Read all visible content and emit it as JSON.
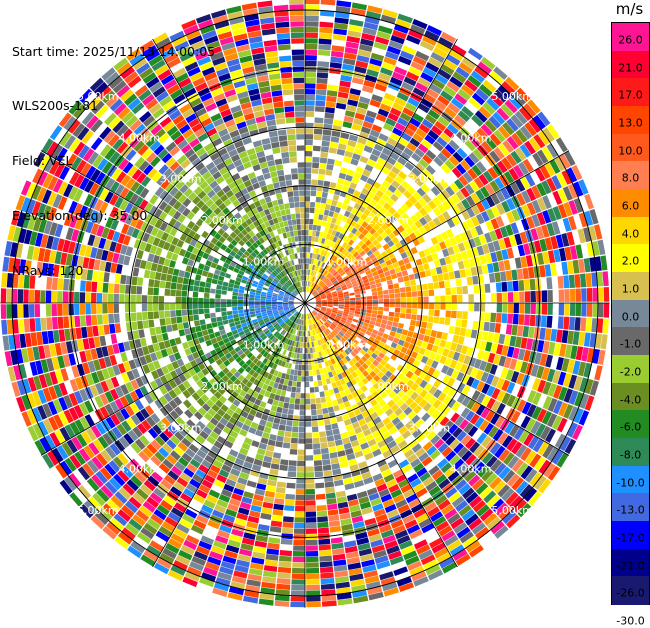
{
  "info": {
    "start_time": "Start time: 2025/11/13 14:00:05",
    "instrument": "WLS200s-181",
    "field": "Field: VEL",
    "elevation": "Elevation(deg): 35.00",
    "nrays": "NRays: 120"
  },
  "chart_data": {
    "type": "heatmap",
    "projection": "polar-ppi",
    "field": "VEL",
    "unit": "m/s",
    "n_rays": 120,
    "range_rings_km": [
      1.0,
      2.0,
      3.0,
      4.0,
      5.0
    ],
    "range_ring_labels": [
      "1.00km",
      "2.00km",
      "3.00km",
      "4.00km",
      "5.00km"
    ],
    "max_range_km": 5.2,
    "spokes_deg": [
      0,
      30,
      60,
      90,
      120,
      150,
      180,
      210,
      240,
      270,
      300,
      330
    ],
    "pattern": {
      "west_sector": "negative velocities (-1 to -13 m/s, blue core near origin)",
      "east_sector": "positive velocities (+1 to +13 m/s, red core near origin)",
      "beyond_3km": "noise across full scale"
    },
    "colorbar": {
      "unit": "m/s",
      "ticks": [
        "26.0",
        "21.0",
        "17.0",
        "13.0",
        "10.0",
        "8.0",
        "6.0",
        "4.0",
        "2.0",
        "1.0",
        "0.0",
        "-1.0",
        "-2.0",
        "-4.0",
        "-6.0",
        "-8.0",
        "-10.0",
        "-13.0",
        "-17.0",
        "-21.0",
        "-26.0",
        "-30.0"
      ],
      "colors": [
        "#ff1493",
        "#ff0033",
        "#ff1a1a",
        "#ff4500",
        "#ff5a1e",
        "#ff7f50",
        "#ff8c00",
        "#ffd700",
        "#ffff00",
        "#d8c050",
        "#778899",
        "#696969",
        "#9acd32",
        "#6b8e23",
        "#228b22",
        "#2e8b57",
        "#1e90ff",
        "#4169e1",
        "#0000ff",
        "#00008b",
        "#191970"
      ]
    }
  }
}
